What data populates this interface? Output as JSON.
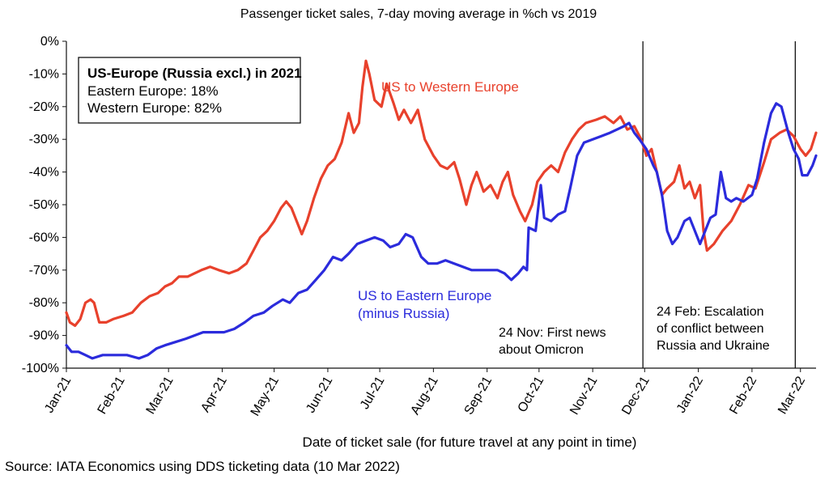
{
  "chart_data": {
    "type": "line",
    "title": "Passenger ticket sales, 7-day moving average in %ch vs 2019",
    "xlabel": "Date of ticket sale (for future travel at any point in time)",
    "ylabel": "",
    "source": "Source: IATA Economics using DDS ticketing data (10 Mar 2022)",
    "ylim": [
      -100,
      0
    ],
    "xlim": [
      "2021-01-01",
      "2022-03-10"
    ],
    "y_ticks": [
      0,
      -10,
      -20,
      -30,
      -40,
      -50,
      -60,
      -70,
      -80,
      -90,
      -100
    ],
    "y_tick_labels": [
      "0%",
      "-10%",
      "-20%",
      "-30%",
      "-40%",
      "-50%",
      "-60%",
      "-70%",
      "-80%",
      "-90%",
      "-100%"
    ],
    "x_ticks": [
      "2021-01-01",
      "2021-02-01",
      "2021-03-01",
      "2021-04-01",
      "2021-05-01",
      "2021-06-01",
      "2021-07-01",
      "2021-08-01",
      "2021-09-01",
      "2021-10-01",
      "2021-11-01",
      "2021-12-01",
      "2022-01-01",
      "2022-02-01",
      "2022-03-01"
    ],
    "x_tick_labels": [
      "Jan-21",
      "Feb-21",
      "Mar-21",
      "Apr-21",
      "May-21",
      "Jun-21",
      "Jul-21",
      "Aug-21",
      "Sep-21",
      "Oct-21",
      "Nov-21",
      "Dec-21",
      "Jan-22",
      "Feb-22",
      "Mar-22"
    ],
    "grid": false,
    "series": [
      {
        "name": "US to Western Europe",
        "color": "#e8412c",
        "points": [
          [
            "2021-01-01",
            -83
          ],
          [
            "2021-01-03",
            -86
          ],
          [
            "2021-01-06",
            -87
          ],
          [
            "2021-01-09",
            -85
          ],
          [
            "2021-01-12",
            -80
          ],
          [
            "2021-01-15",
            -79
          ],
          [
            "2021-01-17",
            -80
          ],
          [
            "2021-01-20",
            -86
          ],
          [
            "2021-01-24",
            -86
          ],
          [
            "2021-01-28",
            -85
          ],
          [
            "2021-02-03",
            -84
          ],
          [
            "2021-02-08",
            -83
          ],
          [
            "2021-02-13",
            -80
          ],
          [
            "2021-02-18",
            -78
          ],
          [
            "2021-02-23",
            -77
          ],
          [
            "2021-02-27",
            -75
          ],
          [
            "2021-03-03",
            -74
          ],
          [
            "2021-03-07",
            -72
          ],
          [
            "2021-03-12",
            -72
          ],
          [
            "2021-03-16",
            -71
          ],
          [
            "2021-03-20",
            -70
          ],
          [
            "2021-03-25",
            -69
          ],
          [
            "2021-03-30",
            -70
          ],
          [
            "2021-04-05",
            -71
          ],
          [
            "2021-04-10",
            -70
          ],
          [
            "2021-04-15",
            -68
          ],
          [
            "2021-04-19",
            -64
          ],
          [
            "2021-04-23",
            -60
          ],
          [
            "2021-04-27",
            -58
          ],
          [
            "2021-05-01",
            -55
          ],
          [
            "2021-05-05",
            -51
          ],
          [
            "2021-05-08",
            -49
          ],
          [
            "2021-05-11",
            -51
          ],
          [
            "2021-05-14",
            -55
          ],
          [
            "2021-05-17",
            -59
          ],
          [
            "2021-05-20",
            -55
          ],
          [
            "2021-05-24",
            -48
          ],
          [
            "2021-05-28",
            -42
          ],
          [
            "2021-06-01",
            -38
          ],
          [
            "2021-06-05",
            -36
          ],
          [
            "2021-06-09",
            -31
          ],
          [
            "2021-06-13",
            -22
          ],
          [
            "2021-06-16",
            -28
          ],
          [
            "2021-06-19",
            -25
          ],
          [
            "2021-06-21",
            -14
          ],
          [
            "2021-06-23",
            -6
          ],
          [
            "2021-06-25",
            -10
          ],
          [
            "2021-06-28",
            -18
          ],
          [
            "2021-07-02",
            -20
          ],
          [
            "2021-07-05",
            -13
          ],
          [
            "2021-07-09",
            -19
          ],
          [
            "2021-07-12",
            -24
          ],
          [
            "2021-07-15",
            -21
          ],
          [
            "2021-07-19",
            -25
          ],
          [
            "2021-07-23",
            -21
          ],
          [
            "2021-07-27",
            -30
          ],
          [
            "2021-08-01",
            -35
          ],
          [
            "2021-08-05",
            -38
          ],
          [
            "2021-08-09",
            -39
          ],
          [
            "2021-08-13",
            -37
          ],
          [
            "2021-08-16",
            -42
          ],
          [
            "2021-08-20",
            -50
          ],
          [
            "2021-08-23",
            -44
          ],
          [
            "2021-08-26",
            -40
          ],
          [
            "2021-08-30",
            -46
          ],
          [
            "2021-09-03",
            -44
          ],
          [
            "2021-09-07",
            -48
          ],
          [
            "2021-09-10",
            -43
          ],
          [
            "2021-09-13",
            -40
          ],
          [
            "2021-09-16",
            -47
          ],
          [
            "2021-09-20",
            -52
          ],
          [
            "2021-09-23",
            -55
          ],
          [
            "2021-09-27",
            -50
          ],
          [
            "2021-09-30",
            -43
          ],
          [
            "2021-10-04",
            -40
          ],
          [
            "2021-10-08",
            -38
          ],
          [
            "2021-10-12",
            -40
          ],
          [
            "2021-10-16",
            -34
          ],
          [
            "2021-10-20",
            -30
          ],
          [
            "2021-10-24",
            -27
          ],
          [
            "2021-10-28",
            -25
          ],
          [
            "2021-11-03",
            -24
          ],
          [
            "2021-11-08",
            -23
          ],
          [
            "2021-11-13",
            -25
          ],
          [
            "2021-11-17",
            -23
          ],
          [
            "2021-11-21",
            -27
          ],
          [
            "2021-11-25",
            -26
          ],
          [
            "2021-11-29",
            -30
          ],
          [
            "2021-12-02",
            -35
          ],
          [
            "2021-12-05",
            -33
          ],
          [
            "2021-12-08",
            -40
          ],
          [
            "2021-12-11",
            -47
          ],
          [
            "2021-12-14",
            -45
          ],
          [
            "2021-12-18",
            -43
          ],
          [
            "2021-12-21",
            -38
          ],
          [
            "2021-12-24",
            -45
          ],
          [
            "2021-12-27",
            -43
          ],
          [
            "2021-12-30",
            -48
          ],
          [
            "2022-01-02",
            -44
          ],
          [
            "2022-01-04",
            -58
          ],
          [
            "2022-01-06",
            -64
          ],
          [
            "2022-01-10",
            -62
          ],
          [
            "2022-01-15",
            -58
          ],
          [
            "2022-01-20",
            -55
          ],
          [
            "2022-01-25",
            -50
          ],
          [
            "2022-01-30",
            -44
          ],
          [
            "2022-02-03",
            -45
          ],
          [
            "2022-02-08",
            -37
          ],
          [
            "2022-02-12",
            -30
          ],
          [
            "2022-02-17",
            -28
          ],
          [
            "2022-02-21",
            -27
          ],
          [
            "2022-02-25",
            -29
          ],
          [
            "2022-03-01",
            -33
          ],
          [
            "2022-03-04",
            -35
          ],
          [
            "2022-03-07",
            -33
          ],
          [
            "2022-03-10",
            -28
          ]
        ]
      },
      {
        "name": "US to Eastern Europe (minus Russia)",
        "color": "#2b2bdc",
        "points": [
          [
            "2021-01-01",
            -93
          ],
          [
            "2021-01-04",
            -95
          ],
          [
            "2021-01-08",
            -95
          ],
          [
            "2021-01-12",
            -96
          ],
          [
            "2021-01-16",
            -97
          ],
          [
            "2021-01-22",
            -96
          ],
          [
            "2021-01-29",
            -96
          ],
          [
            "2021-02-05",
            -96
          ],
          [
            "2021-02-12",
            -97
          ],
          [
            "2021-02-17",
            -96
          ],
          [
            "2021-02-22",
            -94
          ],
          [
            "2021-02-27",
            -93
          ],
          [
            "2021-03-05",
            -92
          ],
          [
            "2021-03-11",
            -91
          ],
          [
            "2021-03-16",
            -90
          ],
          [
            "2021-03-21",
            -89
          ],
          [
            "2021-03-27",
            -89
          ],
          [
            "2021-04-02",
            -89
          ],
          [
            "2021-04-08",
            -88
          ],
          [
            "2021-04-14",
            -86
          ],
          [
            "2021-04-19",
            -84
          ],
          [
            "2021-04-25",
            -83
          ],
          [
            "2021-04-30",
            -81
          ],
          [
            "2021-05-06",
            -79
          ],
          [
            "2021-05-10",
            -80
          ],
          [
            "2021-05-15",
            -77
          ],
          [
            "2021-05-20",
            -76
          ],
          [
            "2021-05-25",
            -73
          ],
          [
            "2021-05-30",
            -70
          ],
          [
            "2021-06-04",
            -66
          ],
          [
            "2021-06-09",
            -67
          ],
          [
            "2021-06-13",
            -65
          ],
          [
            "2021-06-18",
            -62
          ],
          [
            "2021-06-23",
            -61
          ],
          [
            "2021-06-28",
            -60
          ],
          [
            "2021-07-03",
            -61
          ],
          [
            "2021-07-07",
            -63
          ],
          [
            "2021-07-12",
            -62
          ],
          [
            "2021-07-16",
            -59
          ],
          [
            "2021-07-20",
            -60
          ],
          [
            "2021-07-25",
            -66
          ],
          [
            "2021-07-29",
            -68
          ],
          [
            "2021-08-03",
            -68
          ],
          [
            "2021-08-08",
            -67
          ],
          [
            "2021-08-13",
            -68
          ],
          [
            "2021-08-18",
            -69
          ],
          [
            "2021-08-23",
            -70
          ],
          [
            "2021-08-28",
            -70
          ],
          [
            "2021-09-02",
            -70
          ],
          [
            "2021-09-07",
            -70
          ],
          [
            "2021-09-11",
            -71
          ],
          [
            "2021-09-15",
            -73
          ],
          [
            "2021-09-19",
            -71
          ],
          [
            "2021-09-22",
            -69
          ],
          [
            "2021-09-24",
            -70
          ],
          [
            "2021-09-25",
            -57
          ],
          [
            "2021-09-29",
            -58
          ],
          [
            "2021-10-02",
            -44
          ],
          [
            "2021-10-04",
            -54
          ],
          [
            "2021-10-08",
            -55
          ],
          [
            "2021-10-12",
            -53
          ],
          [
            "2021-10-16",
            -52
          ],
          [
            "2021-10-19",
            -45
          ],
          [
            "2021-10-23",
            -35
          ],
          [
            "2021-10-27",
            -31
          ],
          [
            "2021-11-01",
            -30
          ],
          [
            "2021-11-06",
            -29
          ],
          [
            "2021-11-11",
            -28
          ],
          [
            "2021-11-15",
            -27
          ],
          [
            "2021-11-19",
            -26
          ],
          [
            "2021-11-22",
            -25
          ],
          [
            "2021-11-25",
            -28
          ],
          [
            "2021-11-28",
            -30
          ],
          [
            "2021-12-02",
            -33
          ],
          [
            "2021-12-06",
            -38
          ],
          [
            "2021-12-08",
            -40
          ],
          [
            "2021-12-11",
            -47
          ],
          [
            "2021-12-14",
            -58
          ],
          [
            "2021-12-17",
            -62
          ],
          [
            "2021-12-20",
            -60
          ],
          [
            "2021-12-24",
            -55
          ],
          [
            "2021-12-27",
            -54
          ],
          [
            "2021-12-30",
            -58
          ],
          [
            "2022-01-02",
            -62
          ],
          [
            "2022-01-05",
            -58
          ],
          [
            "2022-01-08",
            -54
          ],
          [
            "2022-01-11",
            -53
          ],
          [
            "2022-01-14",
            -40
          ],
          [
            "2022-01-17",
            -48
          ],
          [
            "2022-01-20",
            -49
          ],
          [
            "2022-01-23",
            -48
          ],
          [
            "2022-01-27",
            -49
          ],
          [
            "2022-02-01",
            -47
          ],
          [
            "2022-02-04",
            -42
          ],
          [
            "2022-02-08",
            -31
          ],
          [
            "2022-02-12",
            -22
          ],
          [
            "2022-02-15",
            -19
          ],
          [
            "2022-02-18",
            -20
          ],
          [
            "2022-02-22",
            -28
          ],
          [
            "2022-02-25",
            -33
          ],
          [
            "2022-02-28",
            -36
          ],
          [
            "2022-03-02",
            -41
          ],
          [
            "2022-03-05",
            -41
          ],
          [
            "2022-03-08",
            -38
          ],
          [
            "2022-03-10",
            -35
          ]
        ]
      }
    ],
    "series_labels": [
      {
        "series": 0,
        "lines": [
          "US to Western Europe"
        ]
      },
      {
        "series": 1,
        "lines": [
          "US to Eastern Europe",
          "(minus Russia)"
        ]
      }
    ],
    "events": [
      {
        "date": "2021-11-30",
        "lines": [
          "24 Nov: First news",
          "about Omicron"
        ]
      },
      {
        "date": "2022-02-26",
        "lines": [
          "24 Feb: Escalation",
          "of conflict between",
          "Russia and Ukraine"
        ]
      }
    ],
    "info_box": {
      "title": "US-Europe (Russia excl.) in 2021",
      "lines": [
        "Eastern Europe: 18%",
        "Western Europe: 82%"
      ]
    }
  }
}
